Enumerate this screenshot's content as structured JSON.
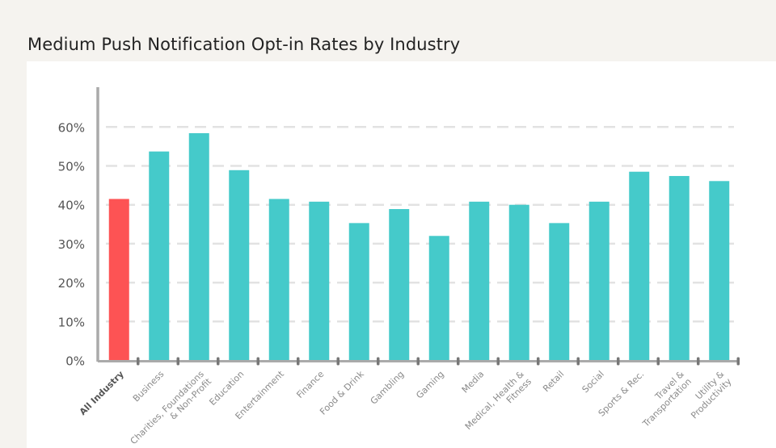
{
  "title": "Medium Push Notification Opt-in Rates by Industry",
  "chart_data": {
    "type": "bar",
    "title": "Medium Push Notification Opt-in Rates by Industry",
    "xlabel": "",
    "ylabel": "",
    "ylim": [
      0,
      0.6
    ],
    "yticks": [
      "0%",
      "10%",
      "20%",
      "30%",
      "40%",
      "50%",
      "60%"
    ],
    "grid": true,
    "categories": [
      "All Industry",
      "Business",
      "Charities, Foundations\n& Non-Profit",
      "Education",
      "Entertainment",
      "Finance",
      "Food & Drink",
      "Gambling",
      "Gaming",
      "Media",
      "Medical, Health &\nFitness",
      "Retail",
      "Social",
      "Sports & Rec.",
      "Travel &\nTransportation",
      "Utility &\nProductivity"
    ],
    "values": [
      0.415,
      0.537,
      0.584,
      0.489,
      0.415,
      0.408,
      0.353,
      0.389,
      0.32,
      0.408,
      0.4,
      0.353,
      0.408,
      0.485,
      0.474,
      0.461
    ],
    "colors": {
      "highlight": "#fd5354",
      "bar": "#45caca",
      "axis": "#999999",
      "grid": "#e2e2e2"
    },
    "highlight_index": 0
  }
}
